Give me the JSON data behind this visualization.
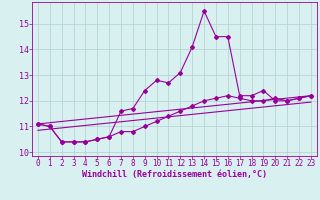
{
  "x": [
    0,
    1,
    2,
    3,
    4,
    5,
    6,
    7,
    8,
    9,
    10,
    11,
    12,
    13,
    14,
    15,
    16,
    17,
    18,
    19,
    20,
    21,
    22,
    23
  ],
  "line1": [
    11.1,
    11.0,
    10.4,
    10.4,
    10.4,
    10.5,
    10.6,
    11.6,
    11.7,
    12.4,
    12.8,
    12.7,
    13.1,
    14.1,
    15.5,
    14.5,
    14.5,
    12.2,
    12.2,
    12.4,
    12.0,
    12.0,
    12.1,
    12.2
  ],
  "line2": [
    11.1,
    11.0,
    10.4,
    10.4,
    10.4,
    10.5,
    10.6,
    10.8,
    10.8,
    11.0,
    11.2,
    11.4,
    11.6,
    11.8,
    12.0,
    12.1,
    12.2,
    12.1,
    12.0,
    12.0,
    12.1,
    12.0,
    12.1,
    12.2
  ],
  "line3": [
    [
      0,
      11.1
    ],
    [
      23,
      12.2
    ]
  ],
  "line4": [
    [
      0,
      10.85
    ],
    [
      23,
      11.95
    ]
  ],
  "color_main": "#990099",
  "bg_color": "#d8f0f0",
  "grid_color": "#b0d0d0",
  "ylim": [
    9.85,
    15.85
  ],
  "xlim": [
    -0.5,
    23.5
  ],
  "xlabel": "Windchill (Refroidissement éolien,°C)",
  "yticks": [
    10,
    11,
    12,
    13,
    14,
    15
  ],
  "xticks": [
    0,
    1,
    2,
    3,
    4,
    5,
    6,
    7,
    8,
    9,
    10,
    11,
    12,
    13,
    14,
    15,
    16,
    17,
    18,
    19,
    20,
    21,
    22,
    23
  ],
  "marker": "D",
  "markersize": 2.0,
  "linewidth": 0.8,
  "tick_fontsize": 5.5,
  "xlabel_fontsize": 6.0
}
